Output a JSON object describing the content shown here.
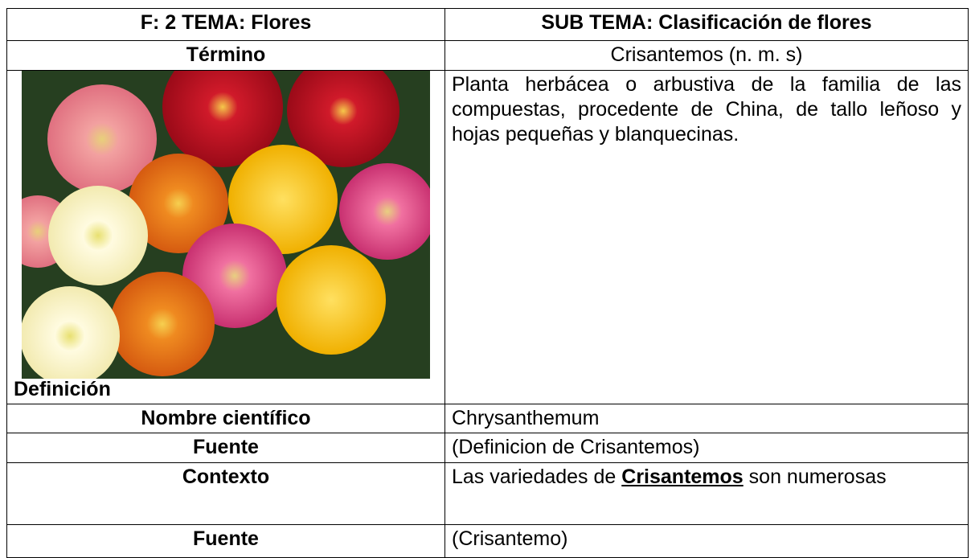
{
  "header": {
    "left": "F: 2  TEMA: Flores",
    "right": "SUB TEMA: Clasificación de flores"
  },
  "rows": [
    {
      "label": "Término",
      "value": "Crisantemos (n. m. s)"
    },
    {
      "label": "Definición",
      "value": "Planta herbácea o arbustiva de la familia de las compuestas, procedente de China, de tallo leñoso y hojas pequeñas y blanquecinas."
    },
    {
      "label": "Nombre científico",
      "value": "Chrysanthemum"
    },
    {
      "label": "Fuente",
      "value": "(Definicion de Crisantemos)"
    },
    {
      "label": "Contexto",
      "value": {
        "before": "Las variedades de",
        "emphasis": "Crisantemos",
        "after": "son numerosas"
      }
    },
    {
      "label": "Fuente",
      "value": "(Crisantemo)"
    }
  ]
}
